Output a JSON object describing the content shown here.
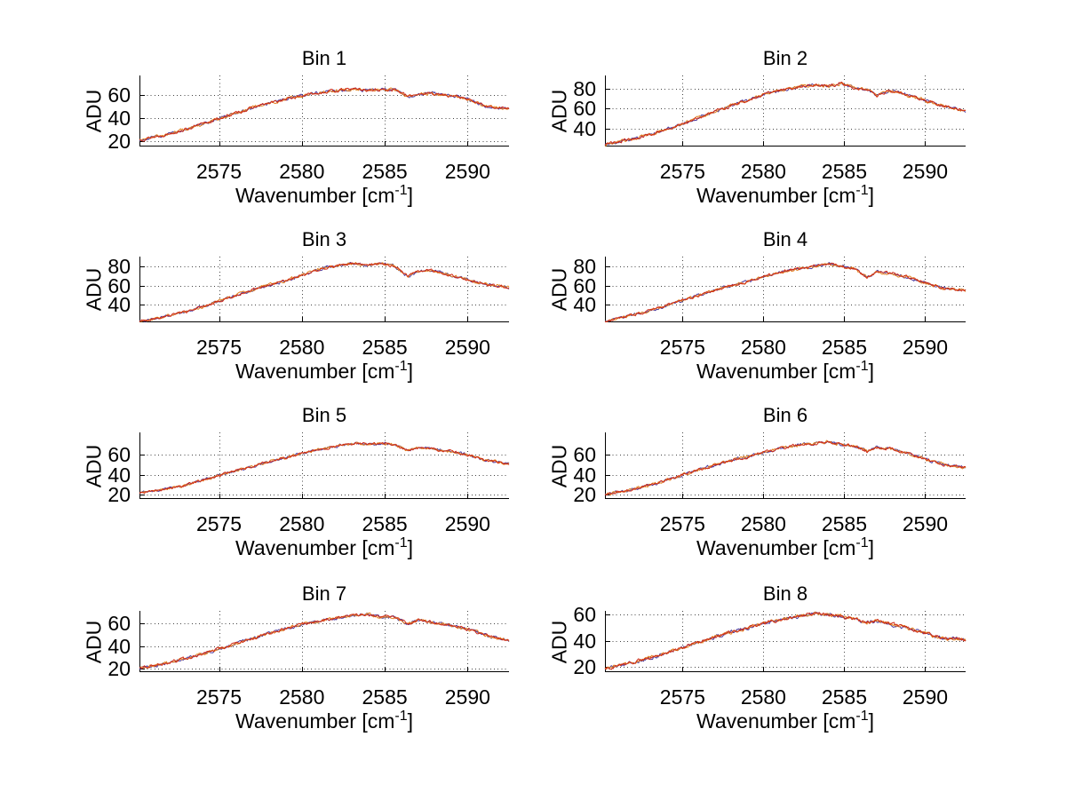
{
  "figure": {
    "background": "#ffffff",
    "ylabel": "ADU",
    "xlabel_prefix": "Wavenumber [cm",
    "xlabel_sup": "-1",
    "xlabel_suffix": "]",
    "axis_color": "#000000",
    "grid_dot_color": "#444444",
    "line_colors": {
      "red": "#cf2c18",
      "orange": "#e2801e",
      "blue": "#4a3aa0"
    }
  },
  "chart_data": [
    {
      "type": "line",
      "title": "Bin 1",
      "xlabel": "Wavenumber [cm^-1]",
      "ylabel": "ADU",
      "xlim": [
        2570.2,
        2592.5
      ],
      "ylim": [
        15,
        77
      ],
      "xticks": [
        2575,
        2580,
        2585,
        2590
      ],
      "yticks": [
        20,
        40,
        60
      ],
      "grid": true,
      "noise_amplitude": 1.1,
      "x": [
        2570.2,
        2571.5,
        2573,
        2574.5,
        2576,
        2577.5,
        2579,
        2580.2,
        2581.3,
        2582.3,
        2583.2,
        2584.0,
        2584.8,
        2585.6,
        2586.4,
        2587.0,
        2587.8,
        2588.6,
        2589.4,
        2590.2,
        2591.2,
        2592.5
      ],
      "y": [
        21,
        24.5,
        30,
        37,
        44,
        51,
        56,
        60,
        62.5,
        64,
        65.5,
        64,
        64.5,
        65,
        58.5,
        61,
        61.5,
        60,
        58.5,
        55,
        50,
        48
      ]
    },
    {
      "type": "line",
      "title": "Bin 2",
      "xlabel": "Wavenumber [cm^-1]",
      "ylabel": "ADU",
      "xlim": [
        2570.2,
        2592.5
      ],
      "ylim": [
        22,
        93
      ],
      "xticks": [
        2575,
        2580,
        2585,
        2590
      ],
      "yticks": [
        40,
        60,
        80
      ],
      "grid": true,
      "noise_amplitude": 1.3,
      "x": [
        2570.2,
        2571.5,
        2573,
        2574.5,
        2576,
        2577.5,
        2579,
        2580.2,
        2581.3,
        2582.3,
        2583.2,
        2584.0,
        2584.8,
        2585.6,
        2586.4,
        2587.0,
        2587.8,
        2588.6,
        2589.4,
        2590.2,
        2591.2,
        2592.5
      ],
      "y": [
        24,
        28,
        34,
        42,
        51,
        60,
        68,
        75,
        79,
        82,
        84,
        82,
        85,
        81,
        79,
        73,
        78,
        75,
        71,
        67,
        62,
        58
      ]
    },
    {
      "type": "line",
      "title": "Bin 3",
      "xlabel": "Wavenumber [cm^-1]",
      "ylabel": "ADU",
      "xlim": [
        2570.2,
        2592.5
      ],
      "ylim": [
        22,
        90
      ],
      "xticks": [
        2575,
        2580,
        2585,
        2590
      ],
      "yticks": [
        40,
        60,
        80
      ],
      "grid": true,
      "noise_amplitude": 1.2,
      "x": [
        2570.2,
        2571.5,
        2573,
        2574.5,
        2576,
        2577.5,
        2579,
        2580.2,
        2581.3,
        2582.3,
        2583.2,
        2584.0,
        2584.8,
        2585.6,
        2586.4,
        2587.0,
        2587.8,
        2588.6,
        2589.4,
        2590.2,
        2591.2,
        2592.5
      ],
      "y": [
        23,
        27,
        33,
        41,
        50,
        58,
        65,
        72,
        78,
        81,
        83,
        81,
        83,
        80,
        69,
        75,
        76,
        72,
        69,
        65,
        61,
        58
      ]
    },
    {
      "type": "line",
      "title": "Bin 4",
      "xlabel": "Wavenumber [cm^-1]",
      "ylabel": "ADU",
      "xlim": [
        2570.2,
        2592.5
      ],
      "ylim": [
        22,
        90
      ],
      "xticks": [
        2575,
        2580,
        2585,
        2590
      ],
      "yticks": [
        40,
        60,
        80
      ],
      "grid": true,
      "noise_amplitude": 1.2,
      "x": [
        2570.2,
        2571.5,
        2573,
        2574.5,
        2576,
        2577.5,
        2579,
        2580.2,
        2581.3,
        2582.3,
        2583.2,
        2584.0,
        2584.8,
        2585.6,
        2586.4,
        2587.0,
        2587.8,
        2588.6,
        2589.4,
        2590.2,
        2591.2,
        2592.5
      ],
      "y": [
        23,
        28,
        34,
        42,
        50,
        58,
        64,
        70,
        75,
        78,
        80,
        83,
        80,
        78,
        68,
        74,
        73,
        70,
        66,
        62,
        57,
        55
      ]
    },
    {
      "type": "line",
      "title": "Bin 5",
      "xlabel": "Wavenumber [cm^-1]",
      "ylabel": "ADU",
      "xlim": [
        2570.2,
        2592.5
      ],
      "ylim": [
        16,
        82
      ],
      "xticks": [
        2575,
        2580,
        2585,
        2590
      ],
      "yticks": [
        20,
        40,
        60
      ],
      "grid": true,
      "noise_amplitude": 1.1,
      "x": [
        2570.2,
        2571.5,
        2573,
        2574.5,
        2576,
        2577.5,
        2579,
        2580.2,
        2581.3,
        2582.3,
        2583.2,
        2584.0,
        2584.8,
        2585.6,
        2586.4,
        2587.0,
        2587.8,
        2588.6,
        2589.4,
        2590.2,
        2591.2,
        2592.5
      ],
      "y": [
        22,
        25,
        30,
        37,
        44,
        51,
        57,
        62,
        66,
        69,
        71,
        70,
        71,
        70,
        64,
        67,
        66,
        64,
        62,
        59,
        54,
        51
      ]
    },
    {
      "type": "line",
      "title": "Bin 6",
      "xlabel": "Wavenumber [cm^-1]",
      "ylabel": "ADU",
      "xlim": [
        2570.2,
        2592.5
      ],
      "ylim": [
        16,
        82
      ],
      "xticks": [
        2575,
        2580,
        2585,
        2590
      ],
      "yticks": [
        20,
        40,
        60
      ],
      "grid": true,
      "noise_amplitude": 1.2,
      "x": [
        2570.2,
        2571.5,
        2573,
        2574.5,
        2576,
        2577.5,
        2579,
        2580.2,
        2581.3,
        2582.3,
        2583.2,
        2584.0,
        2584.8,
        2585.6,
        2586.4,
        2587.0,
        2587.8,
        2588.6,
        2589.4,
        2590.2,
        2591.2,
        2592.5
      ],
      "y": [
        21,
        24,
        30,
        37,
        45,
        52,
        58,
        63,
        67,
        70,
        71,
        73,
        70,
        69,
        63,
        67,
        66,
        63,
        59,
        55,
        50,
        47
      ]
    },
    {
      "type": "line",
      "title": "Bin 7",
      "xlabel": "Wavenumber [cm^-1]",
      "ylabel": "ADU",
      "xlim": [
        2570.2,
        2592.5
      ],
      "ylim": [
        17,
        71
      ],
      "xticks": [
        2575,
        2580,
        2585,
        2590
      ],
      "yticks": [
        20,
        40,
        60
      ],
      "grid": true,
      "noise_amplitude": 1.1,
      "x": [
        2570.2,
        2571.5,
        2573,
        2574.5,
        2576,
        2577.5,
        2579,
        2580.2,
        2581.3,
        2582.3,
        2583.2,
        2584.0,
        2584.8,
        2585.6,
        2586.4,
        2587.0,
        2587.8,
        2588.6,
        2589.4,
        2590.2,
        2591.2,
        2592.5
      ],
      "y": [
        21,
        24,
        29,
        35,
        42,
        49,
        55,
        60,
        63,
        65,
        67,
        68,
        65,
        66,
        59,
        63,
        61,
        59,
        57,
        54,
        49,
        45
      ]
    },
    {
      "type": "line",
      "title": "Bin 8",
      "xlabel": "Wavenumber [cm^-1]",
      "ylabel": "ADU",
      "xlim": [
        2570.2,
        2592.5
      ],
      "ylim": [
        16,
        63
      ],
      "xticks": [
        2575,
        2580,
        2585,
        2590
      ],
      "yticks": [
        20,
        40,
        60
      ],
      "grid": true,
      "noise_amplitude": 1.1,
      "x": [
        2570.2,
        2571.5,
        2573,
        2574.5,
        2576,
        2577.5,
        2579,
        2580.2,
        2581.3,
        2582.3,
        2583.2,
        2584.0,
        2584.8,
        2585.6,
        2586.4,
        2587.0,
        2587.8,
        2588.6,
        2589.4,
        2590.2,
        2591.2,
        2592.5
      ],
      "y": [
        19,
        22,
        27,
        33,
        39,
        45,
        50,
        54,
        57,
        59,
        61,
        60,
        59,
        57,
        54,
        55,
        53,
        51,
        48,
        45,
        42,
        41
      ]
    }
  ]
}
